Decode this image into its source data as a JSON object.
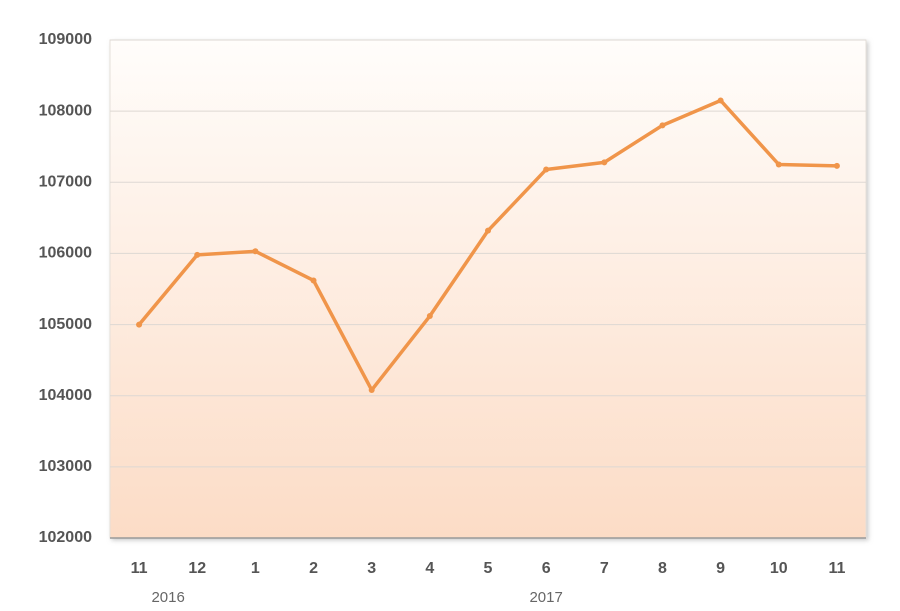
{
  "chart_data": {
    "type": "line",
    "categories": [
      "11",
      "12",
      "1",
      "2",
      "3",
      "4",
      "5",
      "6",
      "7",
      "8",
      "9",
      "10",
      "11"
    ],
    "x_groups": [
      {
        "label": "2016",
        "span": 2
      },
      {
        "label": "2017",
        "span": 11
      }
    ],
    "series": [
      {
        "name": "series",
        "color": "#f0954a",
        "values": [
          105000,
          105980,
          106030,
          105620,
          104080,
          105120,
          106320,
          107180,
          107280,
          107800,
          108150,
          107250,
          107230
        ]
      }
    ],
    "ylim": [
      102000,
      109000
    ],
    "yticks": [
      102000,
      103000,
      104000,
      105000,
      106000,
      107000,
      108000,
      109000
    ],
    "grid": true
  }
}
